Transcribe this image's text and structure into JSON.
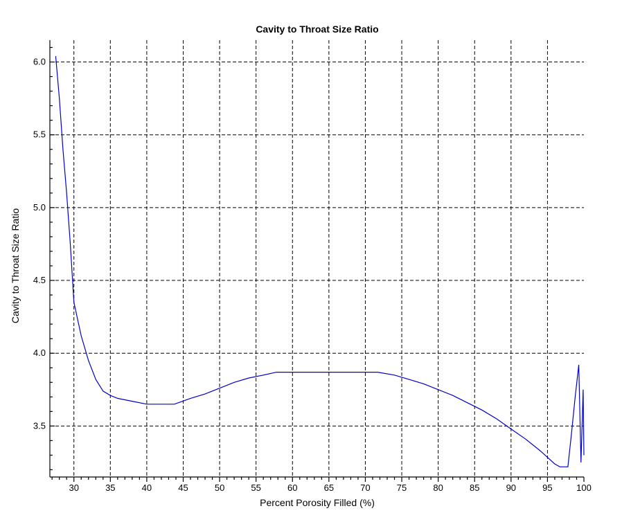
{
  "chart_data": {
    "type": "line",
    "title": "Cavity to Throat Size Ratio",
    "xlabel": "Percent Porosity Filled (%)",
    "ylabel": "Cavity to Throat Size Ratio",
    "xlim": [
      26.7,
      100
    ],
    "ylim": [
      3.15,
      6.15
    ],
    "x_ticks": [
      30,
      35,
      40,
      45,
      50,
      55,
      60,
      65,
      70,
      75,
      80,
      85,
      90,
      95,
      100
    ],
    "x_tick_labels": [
      "30",
      "35",
      "40",
      "45",
      "50",
      "55",
      "60",
      "65",
      "70",
      "75",
      "80",
      "85",
      "90",
      "95",
      "100"
    ],
    "y_ticks": [
      3.5,
      4.0,
      4.5,
      5.0,
      5.5,
      6.0
    ],
    "y_tick_labels": [
      "3.5",
      "4.0",
      "4.5",
      "5.0",
      "5.5",
      "6.0"
    ],
    "grid": true,
    "series": [
      {
        "color": "#0000cc",
        "x": [
          27.5,
          28.0,
          28.5,
          29.0,
          29.5,
          30.0,
          31.0,
          32.0,
          33.0,
          34.0,
          35.0,
          36.0,
          38.0,
          40.0,
          43.8,
          46.0,
          48.0,
          50.0,
          52.0,
          54.0,
          56.0,
          57.8,
          60.0,
          65.0,
          71.7,
          74.0,
          76.0,
          78.0,
          80.0,
          82.0,
          84.0,
          86.0,
          88.0,
          90.0,
          92.0,
          94.0,
          96.0,
          96.7,
          97.8,
          98.3,
          98.8,
          99.3,
          99.6,
          99.9,
          100.0
        ],
        "y": [
          6.04,
          5.75,
          5.4,
          5.1,
          4.75,
          4.35,
          4.12,
          3.95,
          3.82,
          3.74,
          3.71,
          3.69,
          3.67,
          3.65,
          3.65,
          3.69,
          3.72,
          3.76,
          3.8,
          3.83,
          3.85,
          3.87,
          3.87,
          3.87,
          3.87,
          3.85,
          3.82,
          3.79,
          3.75,
          3.71,
          3.66,
          3.61,
          3.55,
          3.48,
          3.41,
          3.33,
          3.24,
          3.22,
          3.22,
          3.45,
          3.7,
          3.92,
          3.25,
          3.75,
          3.3
        ]
      }
    ]
  }
}
